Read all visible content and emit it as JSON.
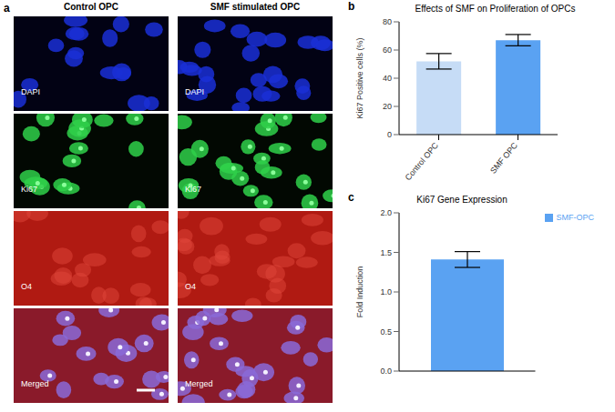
{
  "panel_a": {
    "label": "a",
    "columns": [
      "Control OPC",
      "SMF stimulated OPC"
    ],
    "rows": [
      "DAPI",
      "Ki67",
      "O4",
      "Merged"
    ]
  },
  "chart_data": [
    {
      "panel": "b",
      "type": "bar",
      "title": "Effects of SMF on Proliferation of OPCs",
      "y_label": "Ki67 Positive cells (%)",
      "categories": [
        "Control OPC",
        "SMF OPC"
      ],
      "values": [
        52,
        67
      ],
      "errors": [
        5.5,
        4
      ],
      "colors": [
        "#c6dcf6",
        "#5aa2f2"
      ],
      "ylim": [
        0,
        80
      ],
      "yticks": [
        0,
        20,
        40,
        60,
        80
      ]
    },
    {
      "panel": "c",
      "type": "bar",
      "title": "Ki67 Gene Expression",
      "y_label": "Fold Induction",
      "categories": [
        null
      ],
      "series": [
        {
          "name": "SMF-OPC",
          "color": "#5aa2f2",
          "values": [
            1.41
          ],
          "errors": [
            0.1
          ]
        }
      ],
      "ylim": [
        0,
        2
      ],
      "yticks": [
        {
          "value": 0,
          "label": "0.0"
        },
        {
          "value": 0.5,
          "label": "0.5"
        },
        {
          "value": 1,
          "label": "1.0"
        },
        {
          "value": 1.5,
          "label": "1.5"
        },
        {
          "value": 2,
          "label": "2.0"
        }
      ],
      "legend": "top-right"
    }
  ]
}
